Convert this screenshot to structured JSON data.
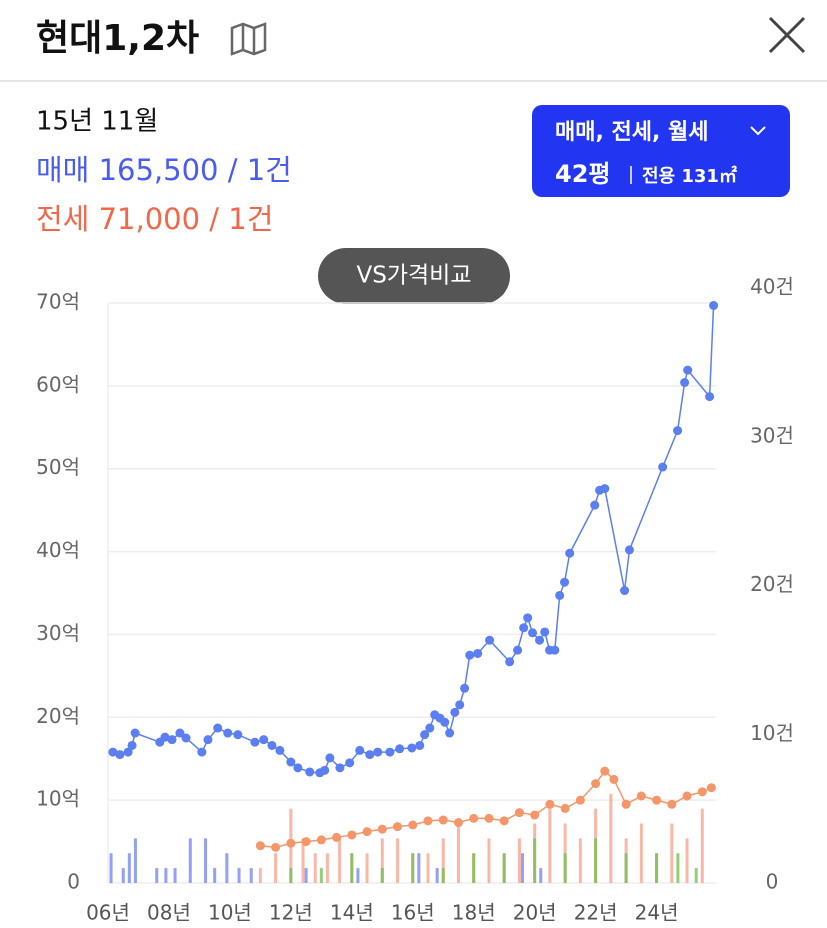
{
  "header": {
    "title": "현대1,2차"
  },
  "info": {
    "date": "15년 11월",
    "sale": "매매 165,500 / 1건",
    "jeonse": "전세 71,000 / 1건"
  },
  "filter": {
    "types": "매매, 전세, 월세",
    "size": "42평",
    "area": "전용 131㎡"
  },
  "compare_button": "VS가격비교",
  "chart_data": {
    "type": "line",
    "xlim": [
      2006,
      2025.95
    ],
    "xticks": [
      {
        "value": 2006,
        "label": "06년"
      },
      {
        "value": 2008,
        "label": "08년"
      },
      {
        "value": 2010,
        "label": "10년"
      },
      {
        "value": 2012,
        "label": "12년"
      },
      {
        "value": 2014,
        "label": "14년"
      },
      {
        "value": 2016,
        "label": "16년"
      },
      {
        "value": 2018,
        "label": "18년"
      },
      {
        "value": 2020,
        "label": "20년"
      },
      {
        "value": 2022,
        "label": "22년"
      },
      {
        "value": 2024,
        "label": "24년"
      }
    ],
    "ylim": [
      0,
      70
    ],
    "yticks": [
      0,
      {
        "value": 10,
        "label": "10억"
      },
      {
        "value": 20,
        "label": "20억"
      },
      {
        "value": 30,
        "label": "30억"
      },
      {
        "value": 40,
        "label": "40억"
      },
      {
        "value": 50,
        "label": "50억"
      },
      {
        "value": 60,
        "label": "60억"
      },
      {
        "value": 70,
        "label": "70억"
      }
    ],
    "y2lim": [
      0,
      40
    ],
    "y2ticks": [
      0,
      {
        "value": 10,
        "label": "10건"
      },
      {
        "value": 20,
        "label": "20건"
      },
      {
        "value": 30,
        "label": "30건"
      },
      {
        "value": 40,
        "label": "40건"
      }
    ],
    "grid": true,
    "series": [
      {
        "type": "bar",
        "axis": "y2",
        "color": "#6f7ff5",
        "x": [
          2006.1,
          2006.5,
          2006.7,
          2006.9,
          2007.6,
          2007.9,
          2008.2,
          2008.7,
          2009.2,
          2009.5,
          2009.9,
          2010.3,
          2010.7,
          2012.5,
          2014.2,
          2016.2,
          2016.8,
          2019.6,
          2020.2
        ],
        "values": [
          2,
          1,
          2,
          3,
          1,
          1,
          1,
          3,
          3,
          1,
          2,
          1,
          1,
          1,
          1,
          2,
          1,
          2,
          1
        ]
      },
      {
        "type": "bar",
        "axis": "y2",
        "color": "#f7a08a",
        "x": [
          2011.0,
          2011.5,
          2012.0,
          2012.4,
          2012.8,
          2013.2,
          2013.6,
          2014.0,
          2014.5,
          2015.0,
          2015.5,
          2016.0,
          2016.5,
          2017.0,
          2017.5,
          2018.0,
          2018.5,
          2019.0,
          2019.5,
          2020.0,
          2020.5,
          2021.0,
          2021.5,
          2022.0,
          2022.5,
          2023.0,
          2023.5,
          2024.0,
          2024.5,
          2025.0,
          2025.5
        ],
        "values": [
          1,
          2,
          5,
          3,
          2,
          2,
          3,
          2,
          2,
          3,
          3,
          2,
          2,
          3,
          4,
          2,
          3,
          2,
          3,
          4,
          5,
          4,
          3,
          5,
          6,
          3,
          4,
          2,
          4,
          3,
          5
        ]
      },
      {
        "type": "bar",
        "axis": "y2",
        "color": "#6fbf4a",
        "x": [
          2012.0,
          2013.0,
          2014.0,
          2015.0,
          2016.0,
          2017.0,
          2018.0,
          2019.0,
          2020.0,
          2021.0,
          2022.0,
          2023.0,
          2024.0,
          2024.7,
          2025.3
        ],
        "values": [
          1,
          1,
          2,
          1,
          2,
          1,
          2,
          2,
          3,
          2,
          3,
          2,
          2,
          2,
          1
        ]
      },
      {
        "type": "line",
        "color": "#f4956a",
        "x": [
          2011.0,
          2011.5,
          2012.0,
          2012.5,
          2013.0,
          2013.5,
          2014.0,
          2014.5,
          2015.0,
          2015.5,
          2016.0,
          2016.5,
          2017.0,
          2017.5,
          2018.0,
          2018.5,
          2019.0,
          2019.5,
          2020.0,
          2020.5,
          2021.0,
          2021.5,
          2022.0,
          2022.3,
          2022.6,
          2023.0,
          2023.5,
          2024.0,
          2024.5,
          2025.0,
          2025.5,
          2025.8
        ],
        "values": [
          4.5,
          4.3,
          4.8,
          5.0,
          5.2,
          5.5,
          5.8,
          6.2,
          6.5,
          6.8,
          7.0,
          7.5,
          7.6,
          7.3,
          7.8,
          7.8,
          7.5,
          8.5,
          8.2,
          9.5,
          9.0,
          10.0,
          12.0,
          13.5,
          12.5,
          9.5,
          10.5,
          10.0,
          9.5,
          10.5,
          11.0,
          11.5
        ]
      },
      {
        "type": "line",
        "color": "#5b7ef0",
        "x": [
          2006.16,
          2006.39,
          2006.66,
          2006.79,
          2006.89,
          2007.7,
          2007.87,
          2008.1,
          2008.36,
          2008.56,
          2009.08,
          2009.28,
          2009.6,
          2009.93,
          2010.26,
          2010.82,
          2011.11,
          2011.38,
          2011.64,
          2012.0,
          2012.23,
          2012.62,
          2012.95,
          2013.11,
          2013.28,
          2013.61,
          2013.93,
          2014.26,
          2014.59,
          2014.85,
          2015.25,
          2015.57,
          2015.97,
          2016.23,
          2016.39,
          2016.56,
          2016.72,
          2016.89,
          2017.05,
          2017.21,
          2017.38,
          2017.54,
          2017.7,
          2017.87,
          2018.13,
          2018.52,
          2019.18,
          2019.44,
          2019.64,
          2019.77,
          2019.93,
          2020.16,
          2020.33,
          2020.49,
          2020.66,
          2020.82,
          2020.98,
          2021.15,
          2021.97,
          2022.13,
          2022.3,
          2022.95,
          2023.11,
          2024.2,
          2024.69,
          2024.92,
          2025.02,
          2025.74,
          2025.87
        ],
        "values": [
          15.8,
          15.5,
          15.8,
          16.6,
          18.1,
          17.0,
          17.6,
          17.3,
          18.1,
          17.5,
          15.8,
          17.3,
          18.7,
          18.1,
          17.9,
          17.0,
          17.3,
          16.6,
          16.0,
          14.6,
          13.9,
          13.4,
          13.3,
          13.6,
          15.1,
          13.9,
          14.5,
          16.0,
          15.5,
          15.8,
          15.8,
          16.2,
          16.3,
          16.6,
          17.9,
          18.7,
          20.3,
          19.9,
          19.4,
          18.1,
          20.6,
          21.5,
          23.5,
          27.5,
          27.7,
          29.3,
          26.7,
          28.1,
          30.8,
          32.0,
          30.2,
          29.3,
          30.3,
          28.1,
          28.1,
          34.7,
          36.3,
          39.8,
          45.6,
          47.4,
          47.6,
          35.3,
          40.2,
          50.2,
          54.6,
          60.4,
          61.9,
          58.7,
          69.7
        ]
      }
    ]
  }
}
